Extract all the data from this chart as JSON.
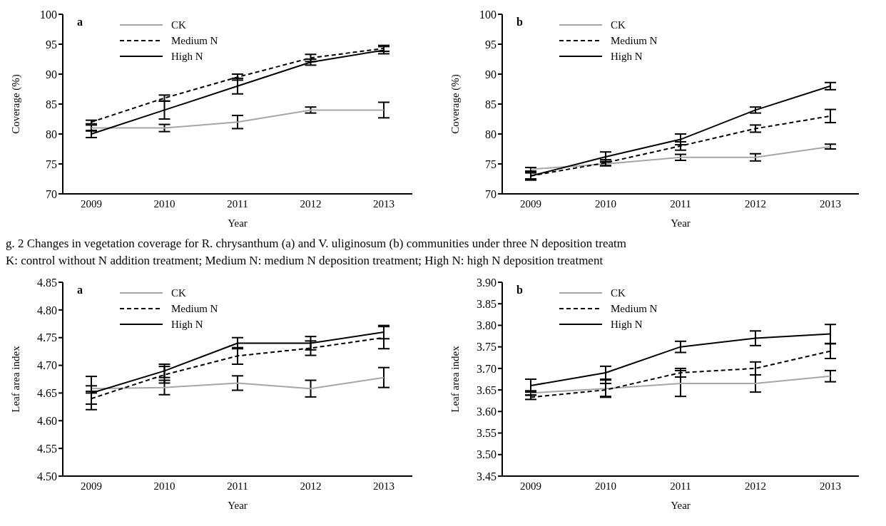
{
  "chart_data": [
    {
      "type": "line",
      "title": "a",
      "xlabel": "Year",
      "ylabel": "Coverage (%)",
      "categories": [
        "2009",
        "2010",
        "2011",
        "2012",
        "2013"
      ],
      "ylim": [
        70,
        100
      ],
      "yticks": [
        70,
        75,
        80,
        85,
        90,
        95,
        100
      ],
      "grid": false,
      "legend": "top left",
      "marker": "none",
      "annotations": [
        "g. 2    Changes in vegetation coverage for R. chrysanthum (a) and V. uliginosum (b) communities under three N deposition treatm",
        "K: control without N addition treatment; Medium N: medium N deposition treatment; High N: high N deposition treatment"
      ],
      "series": [
        {
          "name": "CK",
          "color": "#a6a6a6",
          "line_style": "solid",
          "values": [
            81,
            81,
            82,
            84,
            84
          ],
          "errors": [
            0.5,
            0.6,
            1.1,
            0.5,
            1.3
          ]
        },
        {
          "name": "Medium N",
          "color": "#000000",
          "line_style": "dashed",
          "values": [
            82,
            86,
            89.5,
            92.7,
            94.3
          ],
          "errors": [
            0.3,
            0.5,
            0.5,
            0.6,
            0.5
          ]
        },
        {
          "name": "High N",
          "color": "#000000",
          "line_style": "solid",
          "values": [
            80,
            84,
            88,
            92,
            94
          ],
          "errors": [
            0.6,
            1.5,
            1.3,
            0.5,
            0.6
          ]
        }
      ]
    },
    {
      "type": "line",
      "title": "b",
      "xlabel": "Year",
      "ylabel": "Coverage (%)",
      "categories": [
        "2009",
        "2010",
        "2011",
        "2012",
        "2013"
      ],
      "ylim": [
        70,
        100
      ],
      "yticks": [
        70,
        75,
        80,
        85,
        90,
        95,
        100
      ],
      "grid": false,
      "legend": "top left",
      "marker": "none",
      "series": [
        {
          "name": "CK",
          "color": "#a6a6a6",
          "line_style": "solid",
          "values": [
            74.1,
            75,
            76.1,
            76.1,
            77.9
          ],
          "errors": [
            0.3,
            0.3,
            0.5,
            0.6,
            0.4
          ]
        },
        {
          "name": "Medium N",
          "color": "#000000",
          "line_style": "dashed",
          "values": [
            73,
            75.2,
            78,
            80.9,
            83
          ],
          "errors": [
            0.5,
            0.5,
            0.7,
            0.6,
            1.1
          ]
        },
        {
          "name": "High N",
          "color": "#000000",
          "line_style": "solid",
          "values": [
            73,
            76.2,
            79.1,
            84,
            88
          ],
          "errors": [
            0.7,
            0.8,
            0.9,
            0.5,
            0.6
          ]
        }
      ]
    },
    {
      "type": "line",
      "title": "a",
      "xlabel": "Year",
      "ylabel": "Leaf area index",
      "categories": [
        "2009",
        "2010",
        "2011",
        "2012",
        "2013"
      ],
      "ylim": [
        4.5,
        4.85
      ],
      "yticks": [
        {
          "value": 4.5,
          "label": "4.50"
        },
        {
          "value": 4.55,
          "label": "4.55"
        },
        {
          "value": 4.6,
          "label": "4.60"
        },
        {
          "value": 4.65,
          "label": "4.65"
        },
        {
          "value": 4.7,
          "label": "4.70"
        },
        {
          "value": 4.75,
          "label": "4.75"
        },
        {
          "value": 4.8,
          "label": "4.80"
        },
        {
          "value": 4.85,
          "label": "4.85"
        }
      ],
      "grid": false,
      "legend": "top left",
      "marker": "none",
      "series": [
        {
          "name": "CK",
          "color": "#a6a6a6",
          "line_style": "solid",
          "values": [
            4.658,
            4.66,
            4.668,
            4.658,
            4.678
          ],
          "errors": [
            0.005,
            0.013,
            0.013,
            0.015,
            0.018
          ]
        },
        {
          "name": "Medium N",
          "color": "#000000",
          "line_style": "dashed",
          "values": [
            4.64,
            4.683,
            4.717,
            4.731,
            4.75
          ],
          "errors": [
            0.01,
            0.015,
            0.015,
            0.013,
            0.02
          ]
        },
        {
          "name": "High N",
          "color": "#000000",
          "line_style": "solid",
          "values": [
            4.65,
            4.69,
            4.74,
            4.74,
            4.76
          ],
          "errors": [
            0.03,
            0.012,
            0.01,
            0.012,
            0.012
          ]
        }
      ]
    },
    {
      "type": "line",
      "title": "b",
      "xlabel": "Year",
      "ylabel": "Leaf area index",
      "categories": [
        "2009",
        "2010",
        "2011",
        "2012",
        "2013"
      ],
      "ylim": [
        3.45,
        3.9
      ],
      "yticks": [
        {
          "value": 3.45,
          "label": "3.45"
        },
        {
          "value": 3.5,
          "label": "3.50"
        },
        {
          "value": 3.55,
          "label": "3.55"
        },
        {
          "value": 3.6,
          "label": "3.60"
        },
        {
          "value": 3.65,
          "label": "3.65"
        },
        {
          "value": 3.7,
          "label": "3.70"
        },
        {
          "value": 3.75,
          "label": "3.75"
        },
        {
          "value": 3.8,
          "label": "3.80"
        },
        {
          "value": 3.85,
          "label": "3.85"
        },
        {
          "value": 3.9,
          "label": "3.90"
        }
      ],
      "grid": false,
      "legend": "top left",
      "marker": "none",
      "series": [
        {
          "name": "CK",
          "color": "#a6a6a6",
          "line_style": "solid",
          "values": [
            3.643,
            3.653,
            3.665,
            3.665,
            3.682
          ],
          "errors": [
            0.005,
            0.02,
            0.03,
            0.02,
            0.013
          ]
        },
        {
          "name": "Medium N",
          "color": "#000000",
          "line_style": "dashed",
          "values": [
            3.633,
            3.65,
            3.69,
            3.7,
            3.74
          ],
          "errors": [
            0.005,
            0.015,
            0.01,
            0.015,
            0.017
          ]
        },
        {
          "name": "High N",
          "color": "#000000",
          "line_style": "solid",
          "values": [
            3.66,
            3.69,
            3.75,
            3.77,
            3.78
          ],
          "errors": [
            0.015,
            0.015,
            0.013,
            0.017,
            0.022
          ]
        }
      ]
    }
  ]
}
